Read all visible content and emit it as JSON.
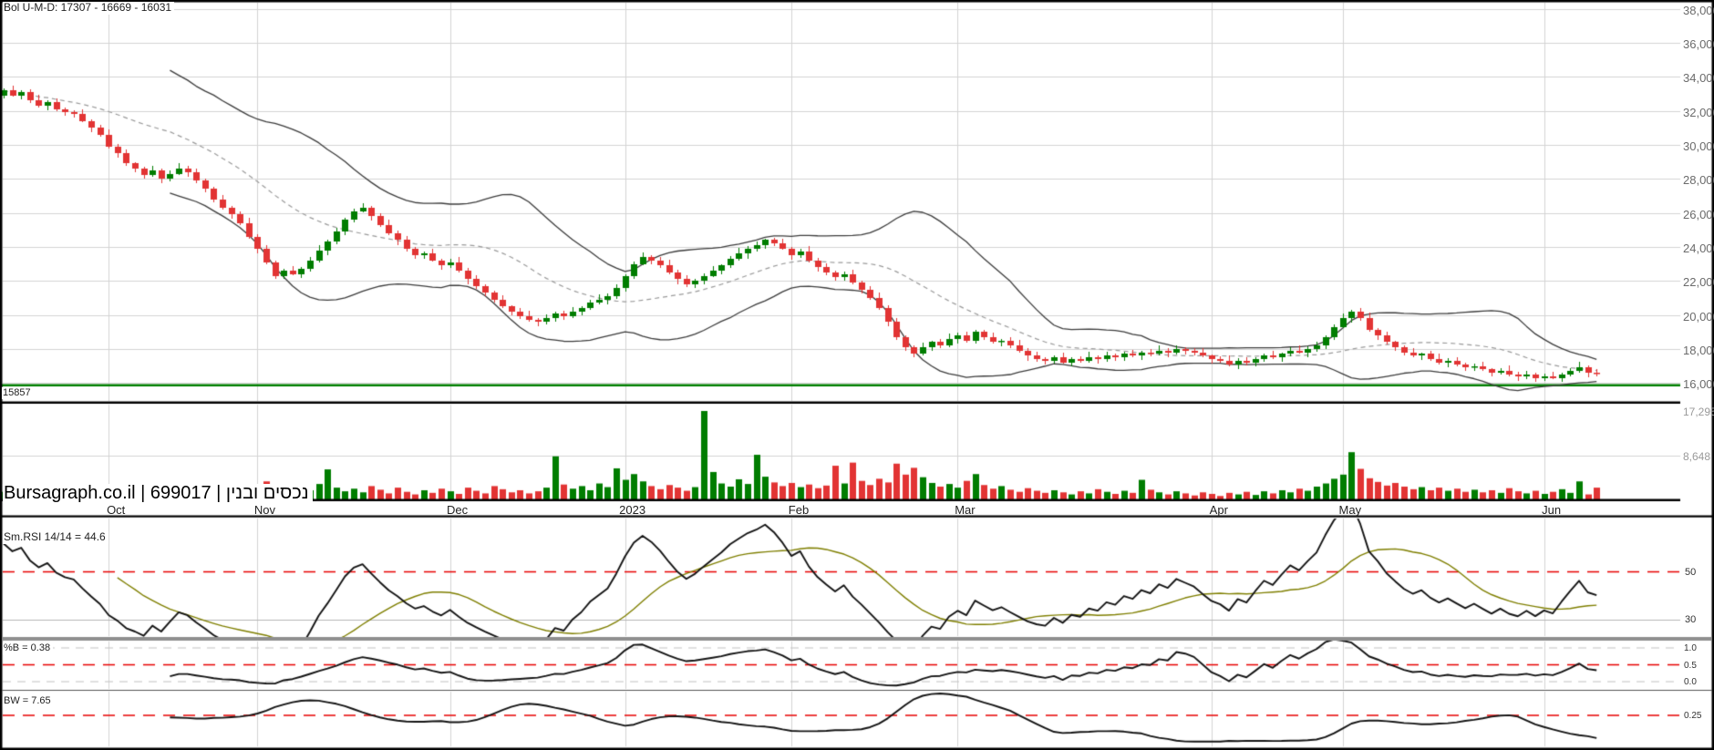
{
  "watermark": {
    "text": "Bursagraph.co.il | 699017 | נכסים ובנין"
  },
  "colors": {
    "up": "#007d00",
    "down": "#e23434",
    "bollinger_outer": "#3c3c3c",
    "bollinger_mid": "#9a9a9a",
    "support": "#007f00",
    "level_red": "#e80000",
    "rsi_line": "#141414",
    "rsi_smooth": "#7f7f00",
    "grid": "#d4d4d4",
    "level_gray_dashed": "#c3c3c3",
    "level_gray_solid": "#b5b5b5"
  },
  "chart_data": [
    {
      "type": "candlestick",
      "name": "price",
      "title": "Bol U-M-D: 17307 - 16669 - 16031",
      "ylim": [
        14900,
        38500
      ],
      "yticks": [
        {
          "value": 38000,
          "label": "38,000"
        },
        {
          "value": 36000,
          "label": "36,000"
        },
        {
          "value": 34000,
          "label": "34,000"
        },
        {
          "value": 32000,
          "label": "32,000"
        },
        {
          "value": 30000,
          "label": "30,000"
        },
        {
          "value": 28000,
          "label": "28,000"
        },
        {
          "value": 26000,
          "label": "26,000"
        },
        {
          "value": 24000,
          "label": "24,000"
        },
        {
          "value": 22000,
          "label": "22,000"
        },
        {
          "value": 20000,
          "label": "20,000"
        },
        {
          "value": 18000,
          "label": "18,000"
        },
        {
          "value": 16000,
          "label": "16,000"
        }
      ],
      "x_axis_months": [
        {
          "label": "Oct",
          "index": 12
        },
        {
          "label": "Nov",
          "index": 29
        },
        {
          "label": "Dec",
          "index": 51
        },
        {
          "label": "2023",
          "index": 71
        },
        {
          "label": "Feb",
          "index": 90
        },
        {
          "label": "Mar",
          "index": 109
        },
        {
          "label": "Apr",
          "index": 138
        },
        {
          "label": "May",
          "index": 153
        },
        {
          "label": "Jun",
          "index": 176
        }
      ],
      "support_level": {
        "value": 15857,
        "label": "15857"
      },
      "bollinger": {
        "period": 20,
        "stddev_mult": 2,
        "last_upper": 17307,
        "last_middle": 16669,
        "last_lower": 16031
      },
      "first_open": 32900,
      "wick_up": [
        120,
        260,
        90,
        180,
        320,
        140,
        220,
        100
      ],
      "wick_down": [
        180,
        90,
        240,
        130,
        100,
        280,
        150,
        210
      ],
      "closes": [
        33200,
        32900,
        33100,
        32600,
        32300,
        32500,
        32100,
        31900,
        31800,
        31400,
        31000,
        30600,
        29900,
        29500,
        28900,
        28600,
        28200,
        28500,
        28000,
        28300,
        28600,
        28400,
        27900,
        27400,
        26800,
        26300,
        25900,
        25400,
        24600,
        23900,
        23100,
        22300,
        22600,
        22400,
        22700,
        23200,
        23800,
        24300,
        24900,
        25600,
        26100,
        26300,
        25800,
        25300,
        24800,
        24400,
        23900,
        23500,
        23600,
        23200,
        22900,
        23100,
        22600,
        22100,
        21700,
        21300,
        20900,
        20500,
        20200,
        19900,
        19700,
        19600,
        19800,
        20100,
        19900,
        20200,
        20400,
        20700,
        20900,
        21100,
        21600,
        22300,
        23000,
        23400,
        23200,
        22900,
        22500,
        22100,
        21800,
        22000,
        22300,
        22600,
        22900,
        23300,
        23600,
        23900,
        24100,
        24400,
        24200,
        23900,
        23500,
        23700,
        23200,
        22800,
        22500,
        22200,
        22400,
        21900,
        21500,
        21000,
        20400,
        19600,
        18700,
        18100,
        17700,
        18100,
        18400,
        18200,
        18600,
        18800,
        18500,
        19000,
        18700,
        18400,
        18500,
        18200,
        17900,
        17600,
        17400,
        17300,
        17500,
        17200,
        17400,
        17300,
        17500,
        17400,
        17600,
        17500,
        17700,
        17600,
        17800,
        17700,
        17900,
        17800,
        18000,
        17900,
        17800,
        17600,
        17400,
        17300,
        17100,
        17300,
        17200,
        17400,
        17600,
        17500,
        17700,
        17900,
        17800,
        18000,
        18200,
        18700,
        19300,
        19800,
        20200,
        19800,
        19100,
        18800,
        18400,
        18100,
        17800,
        17600,
        17700,
        17400,
        17200,
        17300,
        17100,
        16900,
        17000,
        16800,
        16600,
        16700,
        16500,
        16400,
        16500,
        16300,
        16400,
        16300,
        16500,
        16700,
        16900,
        16600,
        16520
      ]
    },
    {
      "type": "bar",
      "name": "volume",
      "yticks": [
        {
          "value": 17295,
          "label": "17,295"
        },
        {
          "value": 8648,
          "label": "8,648"
        }
      ],
      "values": [
        1800,
        1200,
        2100,
        900,
        1500,
        2400,
        1100,
        1700,
        1300,
        2000,
        1500,
        1100,
        2600,
        1400,
        1900,
        1200,
        2300,
        1700,
        2800,
        1500,
        1100,
        1800,
        1400,
        2500,
        1900,
        1300,
        2200,
        1600,
        2900,
        2400,
        3800,
        3100,
        2000,
        1500,
        2700,
        2100,
        3300,
        6100,
        2600,
        1900,
        2400,
        1700,
        2900,
        2200,
        1500,
        2600,
        1800,
        1300,
        2100,
        1600,
        2400,
        1900,
        1400,
        2600,
        2000,
        1500,
        2900,
        2300,
        1700,
        2100,
        1500,
        1900,
        2600,
        8600,
        3200,
        2400,
        2900,
        2100,
        3400,
        2700,
        6300,
        4100,
        5200,
        3800,
        2900,
        2300,
        3100,
        2600,
        2000,
        2700,
        17295,
        5600,
        3400,
        2800,
        4200,
        3300,
        8900,
        4700,
        3600,
        2900,
        3500,
        2700,
        3200,
        2500,
        3000,
        6800,
        3400,
        7400,
        3900,
        3100,
        4300,
        3600,
        7200,
        5100,
        6400,
        4600,
        3500,
        2800,
        3300,
        2600,
        3900,
        5200,
        3100,
        2400,
        2900,
        2200,
        1800,
        2500,
        2000,
        1600,
        2100,
        1700,
        1300,
        1900,
        1500,
        2300,
        1800,
        1400,
        2000,
        1600,
        4100,
        2200,
        1700,
        1300,
        1900,
        1500,
        1100,
        1700,
        1400,
        1000,
        1600,
        1300,
        1800,
        1200,
        1900,
        1500,
        2100,
        1700,
        2400,
        2000,
        2800,
        3400,
        4300,
        5100,
        9400,
        6200,
        4400,
        3700,
        3000,
        3500,
        2800,
        2300,
        2700,
        2100,
        2600,
        2000,
        2400,
        1800,
        2200,
        1700,
        2100,
        1600,
        2500,
        1900,
        1500,
        2000,
        1400,
        1800,
        2300,
        1600,
        3800,
        1300,
        2600
      ]
    },
    {
      "type": "line",
      "name": "rsi",
      "label": "Sm.RSI 14/14 = 44.6",
      "last": 44.6,
      "period": 14,
      "smooth_period": 14,
      "seed_avg_gain": 260,
      "seed_avg_loss": 160,
      "derived_from": "closes",
      "ylim": [
        22,
        73
      ],
      "levels": [
        {
          "value": 50,
          "label": "50",
          "style": "red-dashed"
        },
        {
          "value": 30,
          "label": "30",
          "style": "gray-solid"
        }
      ]
    },
    {
      "type": "line",
      "name": "percent_b",
      "label": "%B = 0.38",
      "last": 0.38,
      "derived_from": "bollinger",
      "ylim": [
        -0.24,
        1.24
      ],
      "levels": [
        {
          "value": 1.0,
          "label": "1.0",
          "style": "gray-dashed"
        },
        {
          "value": 0.5,
          "label": "0.5",
          "style": "red-dashed"
        },
        {
          "value": 0.0,
          "label": "0.0",
          "style": "gray-dashed"
        }
      ]
    },
    {
      "type": "line",
      "name": "bandwidth",
      "label": "BW = 7.65",
      "last": 7.65,
      "derived_from": "bollinger",
      "ylim": [
        0,
        0.44
      ],
      "levels": [
        {
          "value": 0.25,
          "label": "0.25",
          "style": "red-dashed"
        }
      ]
    }
  ]
}
